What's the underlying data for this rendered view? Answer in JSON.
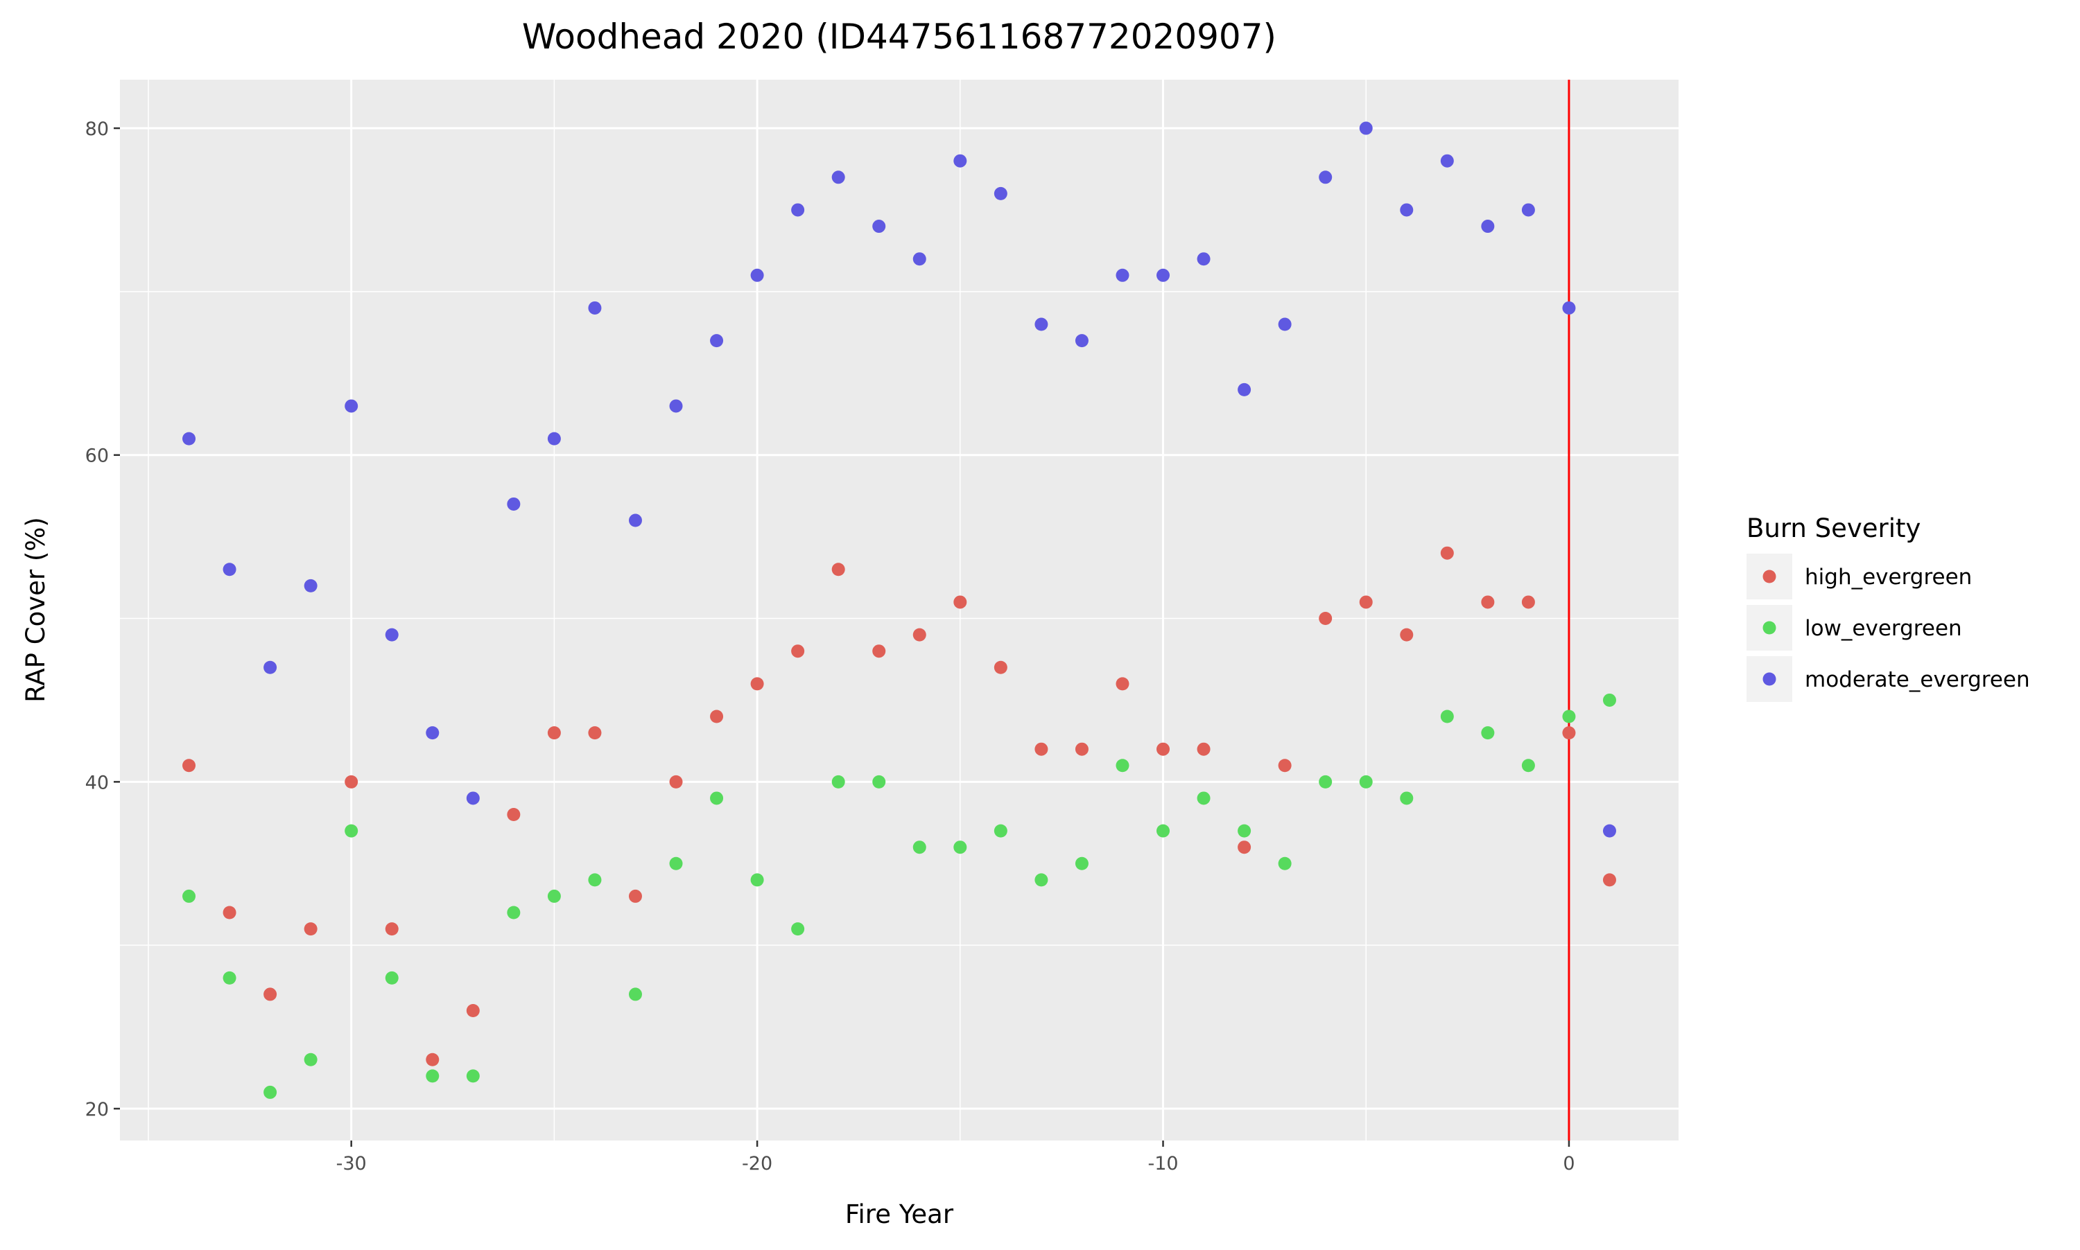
{
  "chart_data": {
    "type": "scatter",
    "title": "Woodhead 2020 (ID447561168772020907)",
    "xlabel": "Fire Year",
    "ylabel": "RAP Cover (%)",
    "xlim": [
      -35.7,
      2.7
    ],
    "ylim": [
      18.05,
      82.97
    ],
    "x_major_ticks": [
      -30,
      -20,
      -10,
      0
    ],
    "x_minor_ticks": [
      -35,
      -25,
      -15,
      -5
    ],
    "y_major_ticks": [
      20,
      40,
      60,
      80
    ],
    "y_minor_ticks": [
      30,
      50,
      70
    ],
    "grid": true,
    "panel_background": "#ebebeb",
    "vline": {
      "x": 0,
      "color": "#ff0000"
    },
    "legend": {
      "title": "Burn Severity",
      "placement": "right"
    },
    "x": [
      -34,
      -33,
      -32,
      -31,
      -30,
      -29,
      -28,
      -27,
      -26,
      -25,
      -24,
      -23,
      -22,
      -21,
      -20,
      -19,
      -18,
      -17,
      -16,
      -15,
      -14,
      -13,
      -12,
      -11,
      -10,
      -9,
      -8,
      -7,
      -6,
      -5,
      -4,
      -3,
      -2,
      -1,
      0,
      1
    ],
    "series": [
      {
        "name": "high_evergreen",
        "color": "#df5f56",
        "values": [
          41,
          32,
          27,
          31,
          40,
          31,
          23,
          26,
          38,
          43,
          43,
          33,
          40,
          44,
          46,
          48,
          53,
          48,
          49,
          51,
          47,
          42,
          42,
          46,
          42,
          42,
          36,
          41,
          50,
          51,
          49,
          54,
          51,
          51,
          43,
          34
        ]
      },
      {
        "name": "low_evergreen",
        "color": "#57da5d",
        "values": [
          33,
          28,
          21,
          23,
          37,
          28,
          22,
          22,
          32,
          33,
          34,
          27,
          35,
          39,
          34,
          31,
          40,
          40,
          36,
          36,
          37,
          34,
          35,
          41,
          37,
          39,
          37,
          35,
          40,
          40,
          39,
          44,
          43,
          41,
          44,
          45
        ]
      },
      {
        "name": "moderate_evergreen",
        "color": "#5f59e1",
        "values": [
          61,
          53,
          47,
          52,
          63,
          49,
          43,
          39,
          57,
          61,
          69,
          56,
          63,
          67,
          71,
          75,
          77,
          74,
          72,
          78,
          76,
          68,
          67,
          71,
          71,
          72,
          64,
          68,
          77,
          80,
          75,
          78,
          74,
          75,
          69,
          37
        ]
      }
    ]
  }
}
